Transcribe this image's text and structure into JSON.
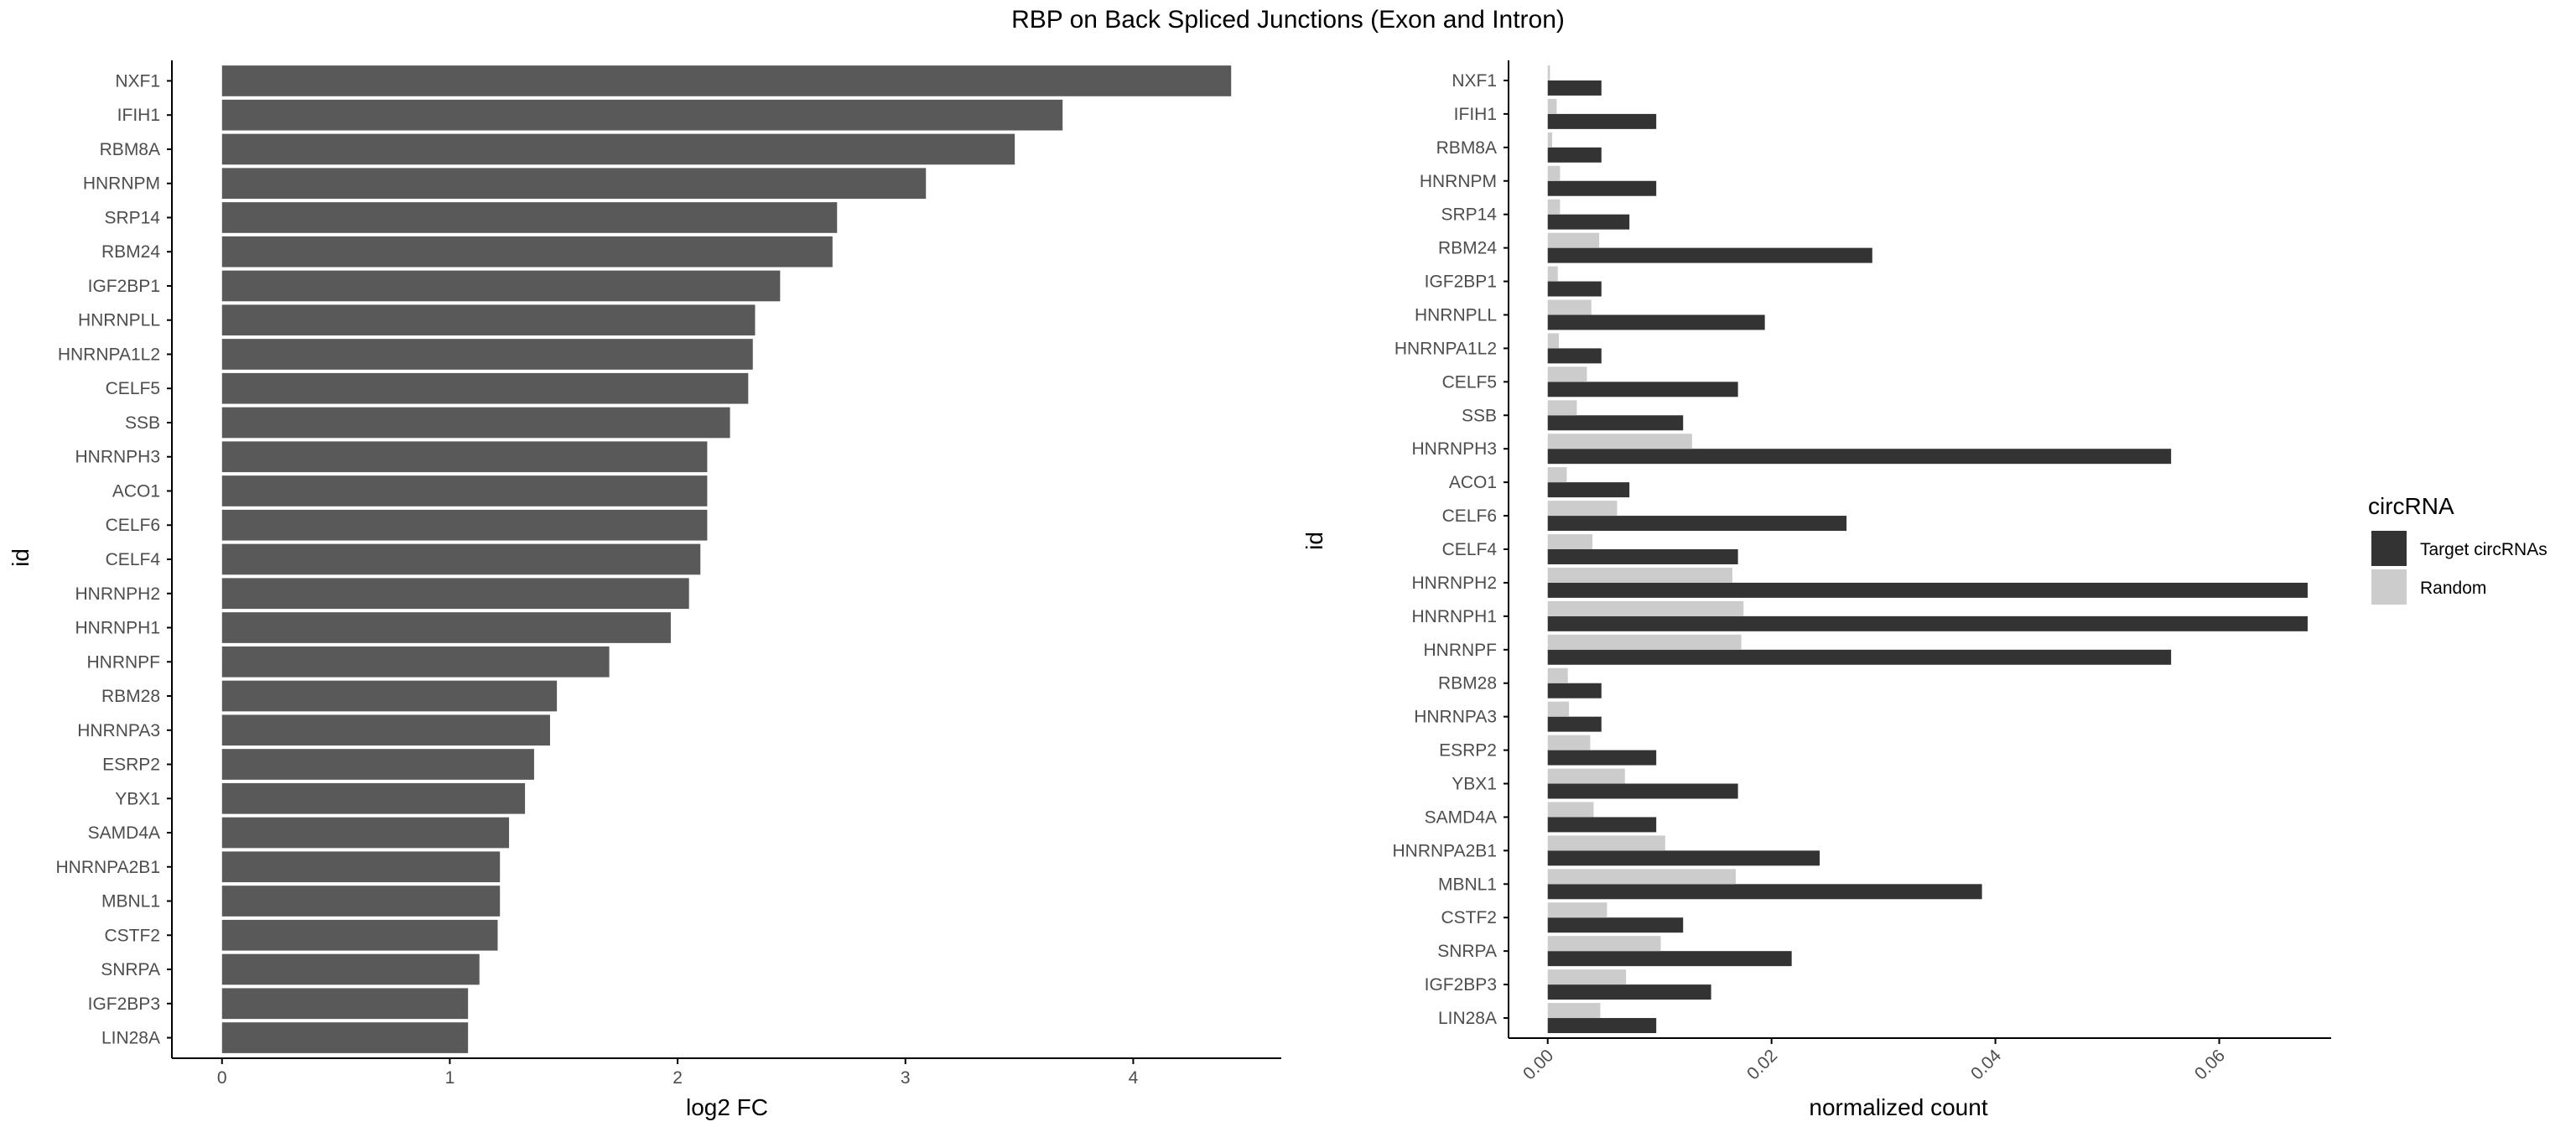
{
  "title": "RBP on Back Spliced Junctions (Exon and Intron)",
  "colors": {
    "bar_left": "#595959",
    "target": "#333333",
    "random": "#cccccc",
    "axis": "#000000",
    "tick_text": "#4d4d4d"
  },
  "chart_data": [
    {
      "type": "bar",
      "orientation": "horizontal",
      "xlabel": "log2 FC",
      "ylabel": "id",
      "xlim": [
        -0.22,
        4.65
      ],
      "xticks": [
        0,
        1,
        2,
        3,
        4
      ],
      "categories": [
        "NXF1",
        "IFIH1",
        "RBM8A",
        "HNRNPM",
        "SRP14",
        "RBM24",
        "IGF2BP1",
        "HNRNPLL",
        "HNRNPA1L2",
        "CELF5",
        "SSB",
        "HNRNPH3",
        "ACO1",
        "CELF6",
        "CELF4",
        "HNRNPH2",
        "HNRNPH1",
        "HNRNPF",
        "RBM28",
        "HNRNPA3",
        "ESRP2",
        "YBX1",
        "SAMD4A",
        "HNRNPA2B1",
        "MBNL1",
        "CSTF2",
        "SNRPA",
        "IGF2BP3",
        "LIN28A"
      ],
      "values": [
        4.43,
        3.69,
        3.48,
        3.09,
        2.7,
        2.68,
        2.45,
        2.34,
        2.33,
        2.31,
        2.23,
        2.13,
        2.13,
        2.13,
        2.1,
        2.05,
        1.97,
        1.7,
        1.47,
        1.44,
        1.37,
        1.33,
        1.26,
        1.22,
        1.22,
        1.21,
        1.13,
        1.08,
        1.08
      ]
    },
    {
      "type": "bar",
      "orientation": "horizontal",
      "grouped": true,
      "xlabel": "normalized count",
      "ylabel": "id",
      "xlim": [
        -0.0035,
        0.07
      ],
      "xticks": [
        0.0,
        0.02,
        0.04,
        0.06
      ],
      "xtick_labels": [
        "0.00",
        "0.02",
        "0.04",
        "0.06"
      ],
      "categories": [
        "NXF1",
        "IFIH1",
        "RBM8A",
        "HNRNPM",
        "SRP14",
        "RBM24",
        "IGF2BP1",
        "HNRNPLL",
        "HNRNPA1L2",
        "CELF5",
        "SSB",
        "HNRNPH3",
        "ACO1",
        "CELF6",
        "CELF4",
        "HNRNPH2",
        "HNRNPH1",
        "HNRNPF",
        "RBM28",
        "HNRNPA3",
        "ESRP2",
        "YBX1",
        "SAMD4A",
        "HNRNPA2B1",
        "MBNL1",
        "CSTF2",
        "SNRPA",
        "IGF2BP3",
        "LIN28A"
      ],
      "series": [
        {
          "name": "Target circRNAs",
          "values": [
            0.0048,
            0.0097,
            0.0048,
            0.0097,
            0.0073,
            0.029,
            0.0048,
            0.0194,
            0.0048,
            0.017,
            0.0121,
            0.0557,
            0.0073,
            0.0267,
            0.017,
            0.0679,
            0.0679,
            0.0557,
            0.0048,
            0.0048,
            0.0097,
            0.017,
            0.0097,
            0.0243,
            0.0388,
            0.0121,
            0.0218,
            0.0146,
            0.0097
          ]
        },
        {
          "name": "Random",
          "values": [
            0.0002,
            0.0008,
            0.0004,
            0.0011,
            0.0011,
            0.0046,
            0.0009,
            0.0039,
            0.001,
            0.0035,
            0.0026,
            0.0129,
            0.0017,
            0.0062,
            0.004,
            0.0165,
            0.0175,
            0.0173,
            0.0018,
            0.0019,
            0.0038,
            0.0069,
            0.0041,
            0.0105,
            0.0168,
            0.0053,
            0.0101,
            0.007,
            0.0047
          ]
        }
      ],
      "legend": {
        "title": "circRNA",
        "position": "right"
      }
    }
  ]
}
